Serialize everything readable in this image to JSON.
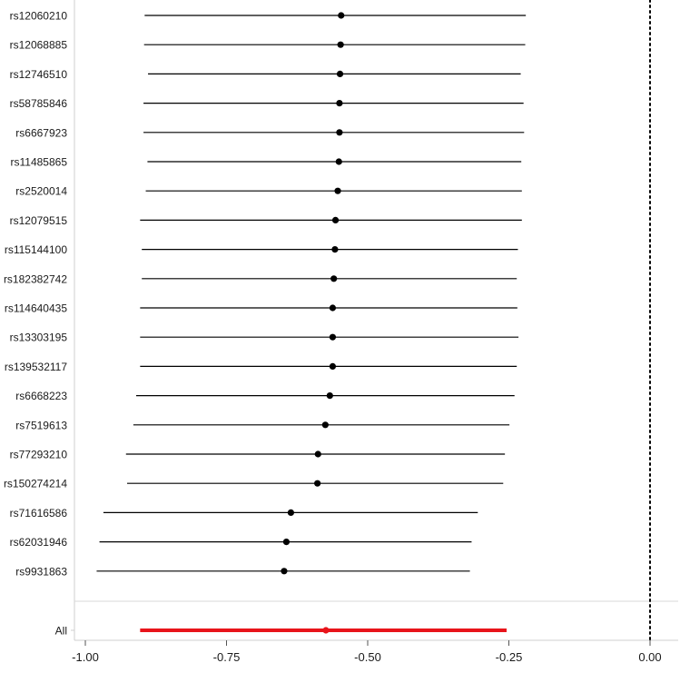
{
  "chart_data": {
    "type": "forest",
    "title": "",
    "xlabel": "",
    "ylabel": "",
    "xlim": [
      -1.02,
      0.05
    ],
    "x_ticks": [
      -1.0,
      -0.75,
      -0.5,
      -0.25,
      0.0
    ],
    "x_tick_labels": [
      "-1.00",
      "-0.75",
      "-0.50",
      "-0.25",
      "0.00"
    ],
    "reference_line": {
      "x": 0.0,
      "style": "dotted"
    },
    "point_color": "#000000",
    "summary_color": "#e8141b",
    "rows": [
      {
        "label": "rs12060210",
        "estimate": -0.547,
        "lower": -0.895,
        "upper": -0.22
      },
      {
        "label": "rs12068885",
        "estimate": -0.548,
        "lower": -0.896,
        "upper": -0.221
      },
      {
        "label": "rs12746510",
        "estimate": -0.549,
        "lower": -0.889,
        "upper": -0.229
      },
      {
        "label": "rs58785846",
        "estimate": -0.55,
        "lower": -0.897,
        "upper": -0.224
      },
      {
        "label": "rs6667923",
        "estimate": -0.55,
        "lower": -0.897,
        "upper": -0.223
      },
      {
        "label": "rs11485865",
        "estimate": -0.551,
        "lower": -0.89,
        "upper": -0.228
      },
      {
        "label": "rs2520014",
        "estimate": -0.553,
        "lower": -0.893,
        "upper": -0.227
      },
      {
        "label": "rs12079515",
        "estimate": -0.557,
        "lower": -0.903,
        "upper": -0.227
      },
      {
        "label": "rs115144100",
        "estimate": -0.558,
        "lower": -0.9,
        "upper": -0.234
      },
      {
        "label": "rs182382742",
        "estimate": -0.56,
        "lower": -0.9,
        "upper": -0.236
      },
      {
        "label": "rs114640435",
        "estimate": -0.562,
        "lower": -0.903,
        "upper": -0.235
      },
      {
        "label": "rs13303195",
        "estimate": -0.562,
        "lower": -0.903,
        "upper": -0.233
      },
      {
        "label": "rs139532117",
        "estimate": -0.562,
        "lower": -0.903,
        "upper": -0.236
      },
      {
        "label": "rs6668223",
        "estimate": -0.567,
        "lower": -0.91,
        "upper": -0.24
      },
      {
        "label": "rs7519613",
        "estimate": -0.575,
        "lower": -0.915,
        "upper": -0.249
      },
      {
        "label": "rs77293210",
        "estimate": -0.588,
        "lower": -0.928,
        "upper": -0.257
      },
      {
        "label": "rs150274214",
        "estimate": -0.589,
        "lower": -0.926,
        "upper": -0.26
      },
      {
        "label": "rs71616586",
        "estimate": -0.636,
        "lower": -0.968,
        "upper": -0.305
      },
      {
        "label": "rs62031946",
        "estimate": -0.644,
        "lower": -0.975,
        "upper": -0.316
      },
      {
        "label": "rs9931863",
        "estimate": -0.648,
        "lower": -0.98,
        "upper": -0.319
      }
    ],
    "summary": {
      "label": "All",
      "estimate": -0.574,
      "lower": -0.903,
      "upper": -0.254
    }
  }
}
